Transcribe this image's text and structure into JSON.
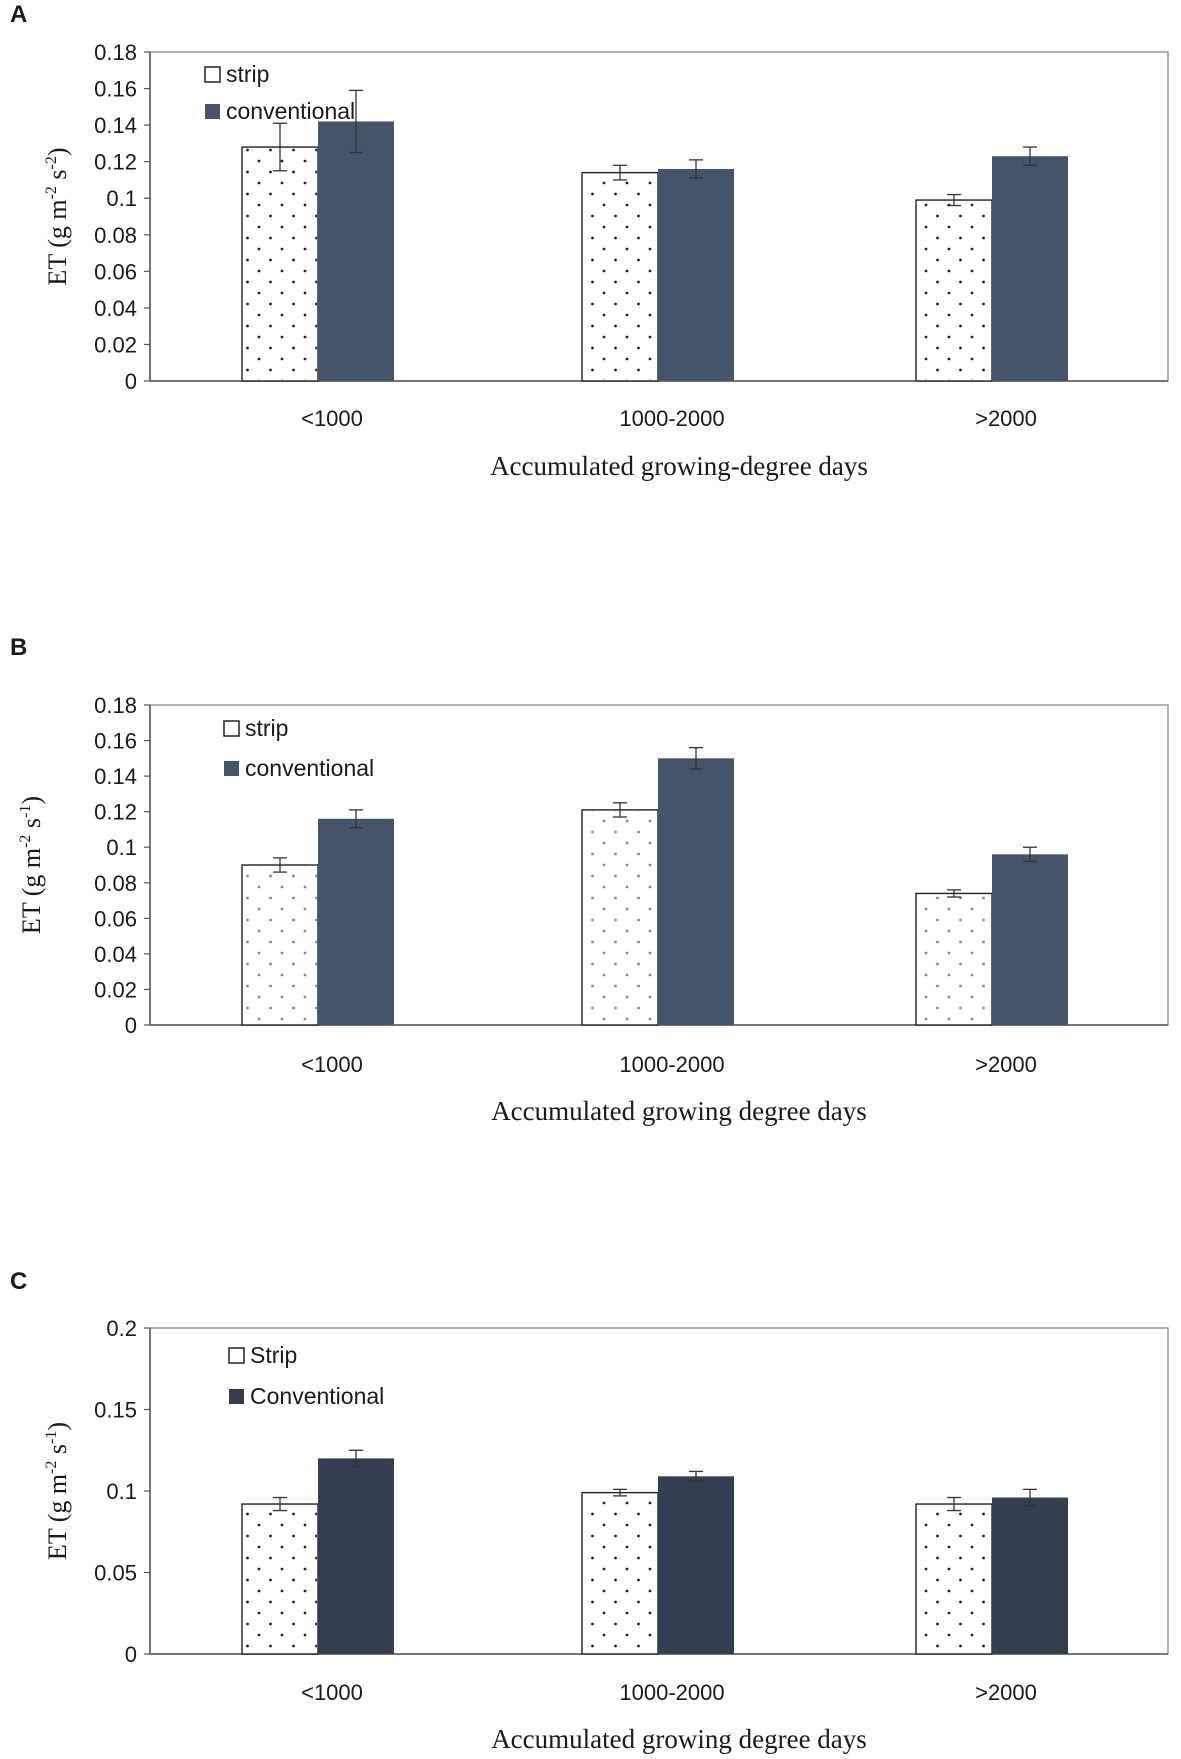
{
  "chart_data": [
    {
      "panel_label": "A",
      "type": "bar",
      "categories": [
        "<1000",
        "1000-2000",
        ">2000"
      ],
      "series": [
        {
          "name": "strip",
          "values": [
            0.128,
            0.114,
            0.099
          ],
          "errors": [
            0.013,
            0.004,
            0.003
          ]
        },
        {
          "name": "conventional",
          "values": [
            0.142,
            0.116,
            0.123
          ],
          "errors": [
            0.017,
            0.005,
            0.005
          ]
        }
      ],
      "xlabel": "Accumulated growing-degree days",
      "ylabel": {
        "base": "ET (g m",
        "sup1": "-2",
        "mid": " s",
        "sup2": "-2",
        "end": ")"
      },
      "ylim": [
        0,
        0.18
      ],
      "yticks": [
        0,
        0.02,
        0.04,
        0.06,
        0.08,
        0.1,
        0.12,
        0.14,
        0.16,
        0.18
      ],
      "ytick_labels": [
        "0",
        "0.02",
        "0.04",
        "0.06",
        "0.08",
        "0.1",
        "0.12",
        "0.14",
        "0.16",
        "0.18"
      ],
      "grid": false,
      "legend": "top-left"
    },
    {
      "panel_label": "B",
      "type": "bar",
      "categories": [
        "<1000",
        "1000-2000",
        ">2000"
      ],
      "series": [
        {
          "name": "strip",
          "values": [
            0.09,
            0.121,
            0.074
          ],
          "errors": [
            0.004,
            0.004,
            0.002
          ]
        },
        {
          "name": "conventional",
          "values": [
            0.116,
            0.15,
            0.096
          ],
          "errors": [
            0.005,
            0.006,
            0.004
          ]
        }
      ],
      "xlabel": "Accumulated growing degree days",
      "ylabel": {
        "base": "ET (g m",
        "sup1": "-2",
        "mid": " s",
        "sup2": "-1",
        "end": ")"
      },
      "ylim": [
        0,
        0.18
      ],
      "yticks": [
        0,
        0.02,
        0.04,
        0.06,
        0.08,
        0.1,
        0.12,
        0.14,
        0.16,
        0.18
      ],
      "ytick_labels": [
        "0",
        "0.02",
        "0.04",
        "0.06",
        "0.08",
        "0.1",
        "0.12",
        "0.14",
        "0.16",
        "0.18"
      ],
      "grid": false,
      "legend": "top-left"
    },
    {
      "panel_label": "C",
      "type": "bar",
      "categories": [
        "<1000",
        "1000-2000",
        ">2000"
      ],
      "series": [
        {
          "name": "Strip",
          "values": [
            0.092,
            0.099,
            0.092
          ],
          "errors": [
            0.004,
            0.002,
            0.004
          ]
        },
        {
          "name": "Conventional",
          "values": [
            0.12,
            0.109,
            0.096
          ],
          "errors": [
            0.005,
            0.003,
            0.005
          ]
        }
      ],
      "xlabel": "Accumulated growing degree days",
      "ylabel": {
        "base": "ET (g m",
        "sup1": "-2",
        "mid": " s",
        "sup2": "-1",
        "end": ")"
      },
      "ylim": [
        0,
        0.2
      ],
      "yticks": [
        0,
        0.05,
        0.1,
        0.15,
        0.2
      ],
      "ytick_labels": [
        "0",
        "0.05",
        "0.1",
        "0.15",
        "0.2"
      ],
      "grid": false,
      "legend": "top-left"
    }
  ],
  "colors": {
    "strip_fill": "#ffffff",
    "strip_dots": "#222222",
    "strip_dots_panel_b": "#6f8fb0",
    "conventional_a": "#44546a",
    "conventional_b": "#44546a",
    "conventional_c": "#333f50",
    "axis": "#555555",
    "text": "#1a1a1a"
  }
}
